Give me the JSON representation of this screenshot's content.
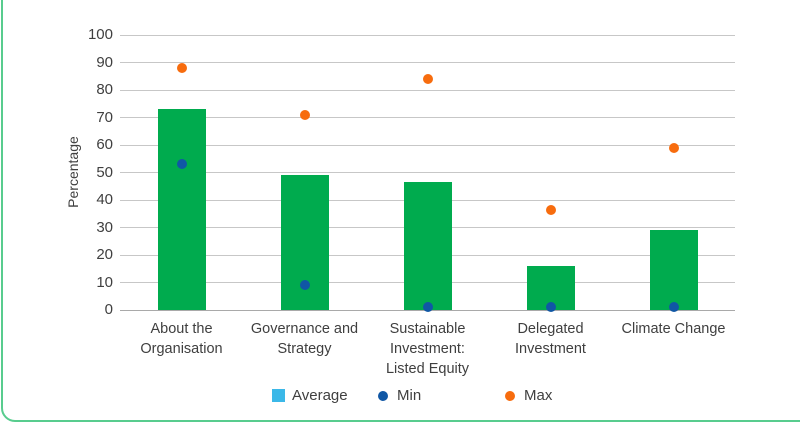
{
  "frame": {
    "border_color": "#58cc8e"
  },
  "colors": {
    "bar_green": "#00ab4e",
    "min_blue": "#1057a5",
    "max_orange": "#f76c0e",
    "legend_average_swatch": "#3bb8e8",
    "gridline": "#c7c7c7",
    "axis_line": "#a9a9a9",
    "text": "#3f3f3f"
  },
  "chart_data": {
    "type": "bar",
    "title": "",
    "xlabel": "",
    "ylabel": "Percentage",
    "ylim": [
      0,
      100
    ],
    "ytick_step": 10,
    "ytick_labels": [
      "0",
      "10",
      "20",
      "30",
      "40",
      "50",
      "60",
      "70",
      "80",
      "90",
      "100"
    ],
    "grid": true,
    "legend_position": "bottom",
    "categories": [
      "About the Organisation",
      "Governance and Strategy",
      "Sustainable Investment: Listed Equity",
      "Delegated Investment",
      "Climate Change"
    ],
    "series": [
      {
        "name": "Average",
        "type": "bar",
        "marker": "square",
        "color": "#00ab4e",
        "swatch_color": "#3bb8e8",
        "values": [
          73,
          49,
          46.5,
          16,
          29
        ]
      },
      {
        "name": "Min",
        "type": "scatter",
        "marker": "circle",
        "color": "#1057a5",
        "swatch_color": "#1057a5",
        "values": [
          53,
          9,
          1,
          1,
          1
        ]
      },
      {
        "name": "Max",
        "type": "scatter",
        "marker": "circle",
        "color": "#f76c0e",
        "swatch_color": "#f76c0e",
        "values": [
          88,
          71,
          84,
          36.5,
          59
        ]
      }
    ]
  }
}
